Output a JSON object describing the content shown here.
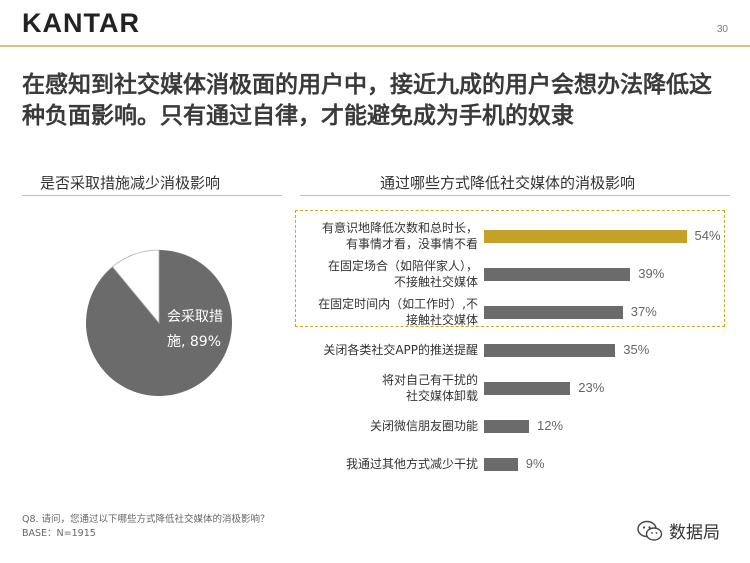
{
  "brand": {
    "logo": "KANTAR",
    "page_number": "30"
  },
  "headline": "在感知到社交媒体消极面的用户中，接近九成的用户会想办法降低这种负面影响。只有通过自律，才能避免成为手机的奴隶",
  "left_section": {
    "title": "是否采取措施减少消极影响"
  },
  "right_section": {
    "title": "通过哪些方式降低社交媒体的消极影响"
  },
  "colors": {
    "gold": "#c4a227",
    "gray": "#6b6b6b",
    "light": "#ffffff"
  },
  "chart_data": [
    {
      "type": "pie",
      "slices": [
        {
          "label_line1": "会采取措",
          "label_line2": "施, 89%",
          "value": 89
        },
        {
          "value": 11
        }
      ]
    },
    {
      "type": "bar",
      "orientation": "horizontal",
      "categories": [
        {
          "line1": "有意识地降低次数和总时长，",
          "line2": "有事情才看，没事情不看"
        },
        {
          "line1": "在固定场合（如陪伴家人），",
          "line2": "不接触社交媒体"
        },
        {
          "line1": "在固定时间内（如工作时）,不",
          "line2": "接触社交媒体"
        },
        {
          "line1": "关闭各类社交APP的推送提醒",
          "line2": ""
        },
        {
          "line1": "将对自己有干扰的",
          "line2": "社交媒体卸载"
        },
        {
          "line1": "关闭微信朋友圈功能",
          "line2": ""
        },
        {
          "line1": "我通过其他方式减少干扰",
          "line2": ""
        }
      ],
      "values": [
        54,
        39,
        37,
        35,
        23,
        12,
        9
      ],
      "value_labels": [
        "54%",
        "39%",
        "37%",
        "35%",
        "23%",
        "12%",
        "9%"
      ],
      "highlight_index": 0
    }
  ],
  "footnote": {
    "line1": "Q8. 请问，您通过以下哪些方式降低社交媒体的消极影响？",
    "line2": "BASE：N=1915"
  },
  "wechat": {
    "name": "数据局"
  }
}
